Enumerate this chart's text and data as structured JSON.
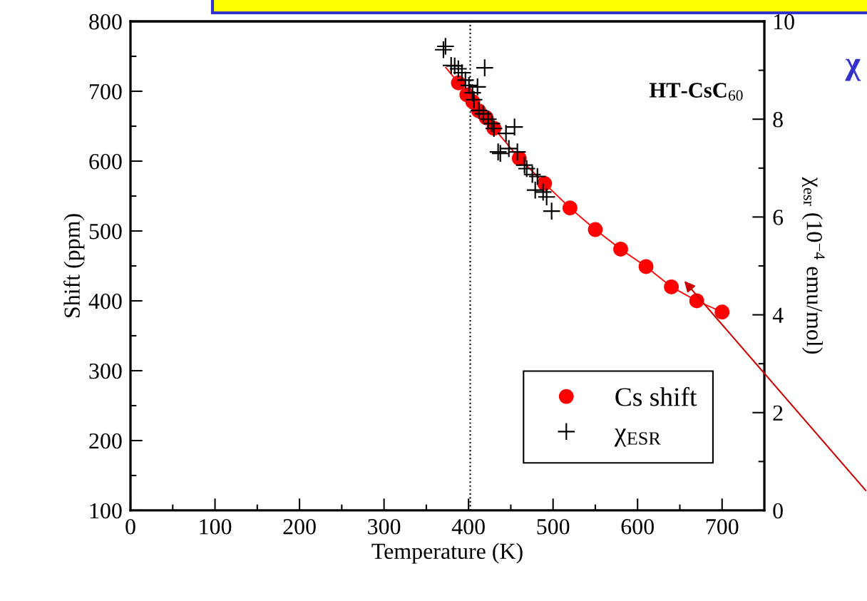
{
  "chart_data": {
    "type": "scatter",
    "annotations": [
      "HT-CsC$_{60}$",
      "χ"
    ],
    "xlabel": "Temperature (K)",
    "ylabel": "Shift (ppm)",
    "y2label": "χ$_{esr}$ (10$^{−4}$ emu/mol)",
    "xlim": [
      0,
      750
    ],
    "ylim": [
      100,
      800
    ],
    "y2lim": [
      0,
      10
    ],
    "xticks": [
      0,
      {
        "value": 50,
        "label": null
      },
      100,
      {
        "value": 150,
        "label": null
      },
      200,
      {
        "value": 250,
        "label": null
      },
      300,
      {
        "value": 350,
        "label": null
      },
      400,
      {
        "value": 450,
        "label": null
      },
      500,
      {
        "value": 550,
        "label": null
      },
      600,
      {
        "value": 650,
        "label": null
      },
      700
    ],
    "yticks": [
      100,
      {
        "value": 150,
        "label": null
      },
      200,
      {
        "value": 250,
        "label": null
      },
      300,
      {
        "value": 350,
        "label": null
      },
      400,
      {
        "value": 450,
        "label": null
      },
      500,
      {
        "value": 550,
        "label": null
      },
      600,
      {
        "value": 650,
        "label": null
      },
      700,
      {
        "value": 750,
        "label": null
      },
      800
    ],
    "y2ticks": [
      0,
      {
        "value": 1,
        "label": null
      },
      2,
      {
        "value": 3,
        "label": null
      },
      4,
      {
        "value": 5,
        "label": null
      },
      6,
      {
        "value": 7,
        "label": null
      },
      8,
      {
        "value": 9,
        "label": null
      },
      10
    ],
    "grid": false,
    "legend": "bottom right",
    "ref_lines": [
      {
        "axis": "x",
        "value": 402,
        "color": "#000000",
        "line_style": "dotted"
      }
    ],
    "series": [
      {
        "name": "Cs shift",
        "marker": "circle",
        "color": "#ff0000",
        "x": [
          388,
          398,
          405,
          412,
          421,
          430,
          460,
          490,
          520,
          550,
          580,
          610,
          640,
          670,
          700
        ],
        "values": [
          712,
          695,
          685,
          672,
          662,
          647,
          604,
          568,
          533,
          502,
          474,
          449,
          420,
          400,
          384
        ]
      },
      {
        "type": "line",
        "marker": "none",
        "line_style": "solid",
        "color": "#ff0000",
        "x": [
          373,
          388,
          405,
          430,
          460,
          490,
          520,
          550,
          580,
          610,
          640,
          670,
          700
        ],
        "values": [
          734,
          712,
          685,
          647,
          604,
          568,
          533,
          502,
          474,
          449,
          420,
          400,
          384
        ]
      },
      {
        "name": "χ$_{ESR}$",
        "marker": "cross",
        "color": "#000000",
        "axis": "y2",
        "x": [
          372.7,
          370.3,
          379.4,
          383.6,
          387.9,
          392.1,
          419.1,
          396.3,
          410.6,
          400.5,
          404.7,
          406.4,
          412.3,
          417.4,
          423.3,
          427.5,
          430.0,
          444.3,
          454.4,
          435.0,
          437.6,
          447.7,
          457.8,
          466.2,
          468.8,
          475.5,
          481.5,
          478.9,
          488.2,
          492.4,
          498.3
        ],
        "values": [
          9.49,
          9.42,
          9.1,
          9.09,
          9.03,
          8.95,
          9.05,
          8.8,
          8.66,
          8.69,
          8.54,
          8.4,
          8.18,
          8.11,
          8.0,
          7.91,
          7.81,
          7.71,
          7.84,
          7.33,
          7.3,
          7.4,
          7.33,
          7.06,
          6.99,
          6.87,
          6.83,
          6.55,
          6.51,
          6.41,
          6.12
        ]
      }
    ]
  }
}
